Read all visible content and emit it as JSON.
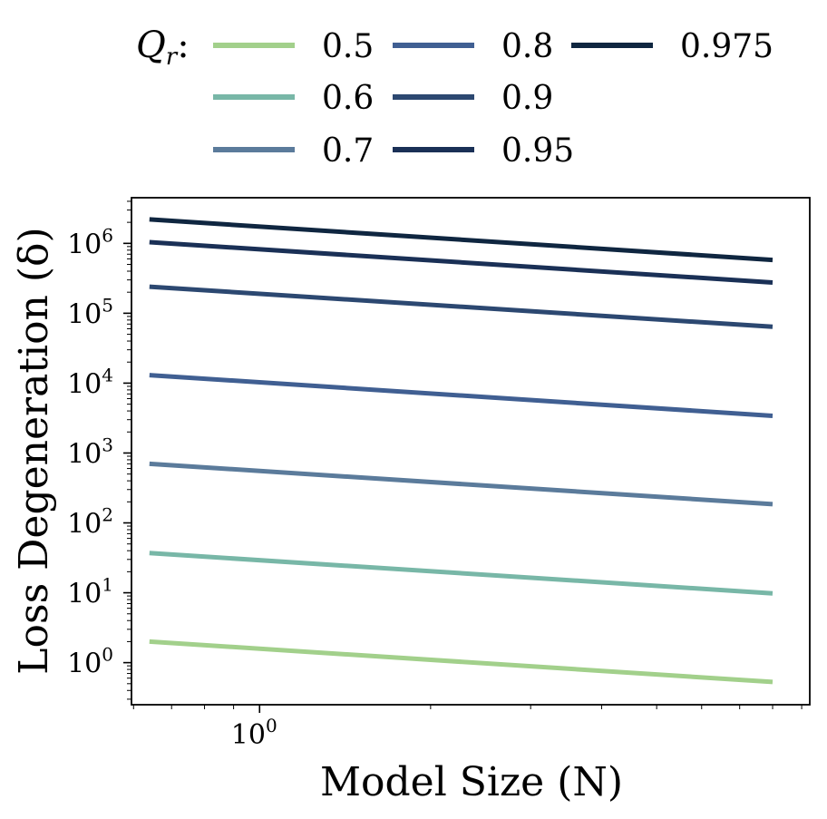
{
  "chart_data": {
    "type": "line",
    "xlabel": "Model Size (N)",
    "ylabel": "Loss Degeneration (δ)",
    "xscale": "log",
    "yscale": "log",
    "xlim": [
      0.595,
      9.3
    ],
    "ylim": [
      0.25,
      4500000
    ],
    "x": [
      0.64,
      8.0
    ],
    "xticks": [
      {
        "value": 1,
        "base": "10",
        "exp": "0"
      }
    ],
    "yticks": [
      {
        "value": 1,
        "base": "10",
        "exp": "0"
      },
      {
        "value": 10,
        "base": "10",
        "exp": "1"
      },
      {
        "value": 100,
        "base": "10",
        "exp": "2"
      },
      {
        "value": 1000,
        "base": "10",
        "exp": "3"
      },
      {
        "value": 10000,
        "base": "10",
        "exp": "4"
      },
      {
        "value": 100000,
        "base": "10",
        "exp": "5"
      },
      {
        "value": 1000000,
        "base": "10",
        "exp": "6"
      }
    ],
    "legend": {
      "title_main": "Q",
      "title_sub": "r",
      "title_suffix": ":",
      "placement": "top",
      "columns": 3
    },
    "series": [
      {
        "name": "0.5",
        "color": "#a2d08b",
        "values": [
          2.0,
          0.53
        ]
      },
      {
        "name": "0.6",
        "color": "#78b7a7",
        "values": [
          37,
          9.8
        ]
      },
      {
        "name": "0.7",
        "color": "#5b7b9b",
        "values": [
          700,
          185
        ]
      },
      {
        "name": "0.8",
        "color": "#405f92",
        "values": [
          13000,
          3400
        ]
      },
      {
        "name": "0.9",
        "color": "#2c4871",
        "values": [
          240000,
          64000
        ]
      },
      {
        "name": "0.95",
        "color": "#1a3056",
        "values": [
          1040000,
          275000
        ]
      },
      {
        "name": "0.975",
        "color": "#0f2640",
        "values": [
          2200000,
          580000
        ]
      }
    ]
  }
}
